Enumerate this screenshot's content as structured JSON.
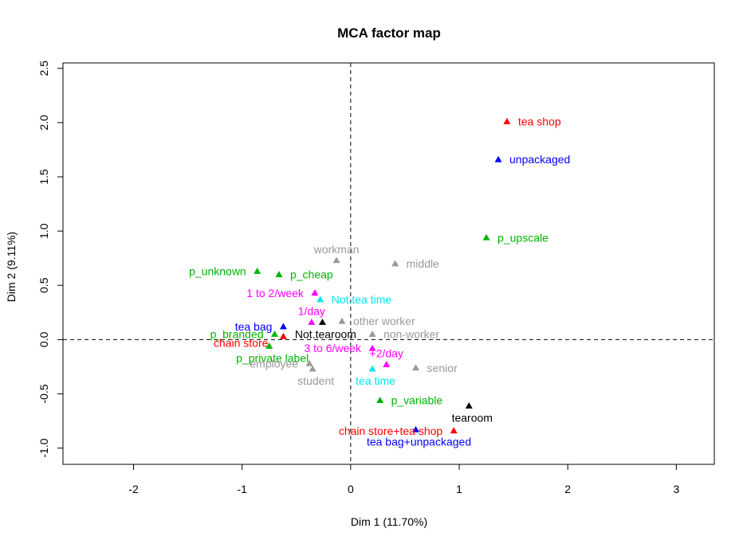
{
  "chart_data": {
    "type": "scatter",
    "title": "MCA factor map",
    "xlabel": "Dim 1 (11.70%)",
    "ylabel": "Dim 2 (9.11%)",
    "xlim": [
      -2.65,
      3.35
    ],
    "ylim": [
      -1.15,
      2.55
    ],
    "xticks": [
      -2,
      -1,
      0,
      1,
      2,
      3
    ],
    "yticks": [
      -1.0,
      -0.5,
      0.0,
      0.5,
      1.0,
      1.5,
      2.0,
      2.5
    ],
    "reference_lines": {
      "x": 0,
      "y": 0,
      "style": "dashed"
    },
    "grid": false,
    "colors": {
      "red": "#ff0000",
      "blue": "#0000ff",
      "green": "#00b400",
      "gray": "#999999",
      "magenta": "#ff00ff",
      "cyan": "#00e5ee",
      "black": "#000000"
    },
    "points": [
      {
        "label": "tea shop",
        "x": 1.44,
        "y": 2.01,
        "color": "#ff0000",
        "anchor": "right"
      },
      {
        "label": "unpackaged",
        "x": 1.36,
        "y": 1.66,
        "color": "#0000ff",
        "anchor": "right"
      },
      {
        "label": "p_upscale",
        "x": 1.25,
        "y": 0.94,
        "color": "#00b400",
        "anchor": "right"
      },
      {
        "label": "workman",
        "x": -0.13,
        "y": 0.73,
        "color": "#999999",
        "anchor": "above"
      },
      {
        "label": "middle",
        "x": 0.41,
        "y": 0.7,
        "color": "#999999",
        "anchor": "right"
      },
      {
        "label": "p_unknown",
        "x": -0.86,
        "y": 0.63,
        "color": "#00b400",
        "anchor": "left"
      },
      {
        "label": "p_cheap",
        "x": -0.66,
        "y": 0.6,
        "color": "#00b400",
        "anchor": "right"
      },
      {
        "label": "1 to 2/week",
        "x": -0.33,
        "y": 0.43,
        "color": "#ff00ff",
        "anchor": "left"
      },
      {
        "label": "Not.tea time",
        "x": -0.28,
        "y": 0.37,
        "color": "#00e5ee",
        "anchor": "right"
      },
      {
        "label": "other worker",
        "x": -0.08,
        "y": 0.17,
        "color": "#999999",
        "anchor": "right"
      },
      {
        "label": "1/day",
        "x": -0.36,
        "y": 0.16,
        "color": "#ff00ff",
        "anchor": "above"
      },
      {
        "label": "Not.tearoom",
        "x": -0.26,
        "y": 0.16,
        "color": "#000000",
        "anchor": "below"
      },
      {
        "label": "tea bag",
        "x": -0.62,
        "y": 0.12,
        "color": "#0000ff",
        "anchor": "left"
      },
      {
        "label": "p_branded",
        "x": -0.7,
        "y": 0.05,
        "color": "#00b400",
        "anchor": "left"
      },
      {
        "label": "chain store",
        "x": -0.62,
        "y": 0.03,
        "color": "#ff0000",
        "anchor": "below-left"
      },
      {
        "label": "non-worker",
        "x": 0.2,
        "y": 0.05,
        "color": "#999999",
        "anchor": "right"
      },
      {
        "label": "p_private label",
        "x": -0.75,
        "y": -0.06,
        "color": "#00b400",
        "anchor": "below"
      },
      {
        "label": "3 to 6/week",
        "x": 0.2,
        "y": -0.08,
        "color": "#ff00ff",
        "anchor": "left"
      },
      {
        "label": "+2/day",
        "x": 0.33,
        "y": -0.23,
        "color": "#ff00ff",
        "anchor": "above"
      },
      {
        "label": "employee",
        "x": -0.38,
        "y": -0.22,
        "color": "#999999",
        "anchor": "left"
      },
      {
        "label": "student",
        "x": -0.35,
        "y": -0.27,
        "color": "#999999",
        "anchor": "below"
      },
      {
        "label": "senior",
        "x": 0.6,
        "y": -0.26,
        "color": "#999999",
        "anchor": "right"
      },
      {
        "label": "tea time",
        "x": 0.2,
        "y": -0.27,
        "color": "#00e5ee",
        "anchor": "below"
      },
      {
        "label": "p_variable",
        "x": 0.27,
        "y": -0.56,
        "color": "#00b400",
        "anchor": "right"
      },
      {
        "label": "tearoom",
        "x": 1.09,
        "y": -0.61,
        "color": "#000000",
        "anchor": "below"
      },
      {
        "label": "chain store+tea shop",
        "x": 0.95,
        "y": -0.84,
        "color": "#ff0000",
        "anchor": "left"
      },
      {
        "label": "tea bag+unpackaged",
        "x": 0.6,
        "y": -0.83,
        "color": "#0000ff",
        "anchor": "below"
      }
    ]
  }
}
